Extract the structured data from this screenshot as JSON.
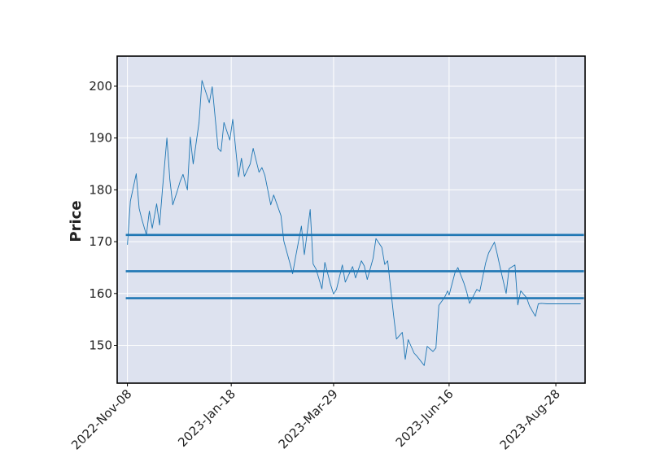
{
  "chart_data": {
    "type": "line",
    "title": "",
    "xlabel": "",
    "ylabel": "Price",
    "ylim": [
      142.7,
      205.8
    ],
    "x_range": [
      "2022-11-01",
      "2023-09-17"
    ],
    "grid": true,
    "legend": "none",
    "yticks": [
      150,
      160,
      170,
      180,
      190,
      200
    ],
    "xticks": [
      "2022-Nov-08",
      "2023-Jan-18",
      "2023-Mar-29",
      "2023-Jun-16",
      "2023-Aug-28"
    ],
    "xtick_dates": [
      "2022-11-08",
      "2023-01-18",
      "2023-03-29",
      "2023-06-16",
      "2023-08-28"
    ],
    "colors": {
      "background": "#dde2ef",
      "grid": "#ffffff",
      "line": "#1f77b4",
      "level_lines": "#1f77b4",
      "axes": "#000000"
    },
    "series": [
      {
        "dates": [
          "2022-11-08",
          "2022-11-10",
          "2022-11-14",
          "2022-11-16",
          "2022-11-18",
          "2022-11-21",
          "2022-11-23",
          "2022-11-25",
          "2022-11-28",
          "2022-11-30",
          "2022-12-02",
          "2022-12-05",
          "2022-12-07",
          "2022-12-09",
          "2022-12-12",
          "2022-12-14",
          "2022-12-16",
          "2022-12-19",
          "2022-12-21",
          "2022-12-23",
          "2022-12-27",
          "2022-12-29",
          "2023-01-03",
          "2023-01-05",
          "2023-01-09",
          "2023-01-11",
          "2023-01-13",
          "2023-01-17",
          "2023-01-19",
          "2023-01-23",
          "2023-01-25",
          "2023-01-27",
          "2023-01-31",
          "2023-02-02",
          "2023-02-06",
          "2023-02-08",
          "2023-02-10",
          "2023-02-14",
          "2023-02-16",
          "2023-02-21",
          "2023-02-23",
          "2023-02-27",
          "2023-03-01",
          "2023-03-03",
          "2023-03-07",
          "2023-03-09",
          "2023-03-13",
          "2023-03-15",
          "2023-03-17",
          "2023-03-21",
          "2023-03-23",
          "2023-03-27",
          "2023-03-29",
          "2023-03-31",
          "2023-04-04",
          "2023-04-06",
          "2023-04-11",
          "2023-04-13",
          "2023-04-17",
          "2023-04-19",
          "2023-04-21",
          "2023-04-25",
          "2023-04-27",
          "2023-05-01",
          "2023-05-03",
          "2023-05-05",
          "2023-05-09",
          "2023-05-11",
          "2023-05-15",
          "2023-05-17",
          "2023-05-19",
          "2023-05-23",
          "2023-05-25",
          "2023-05-30",
          "2023-06-01",
          "2023-06-05",
          "2023-06-07",
          "2023-06-09",
          "2023-06-13",
          "2023-06-15",
          "2023-06-16",
          "2023-06-20",
          "2023-06-22",
          "2023-06-26",
          "2023-06-28",
          "2023-06-30",
          "2023-07-05",
          "2023-07-07",
          "2023-07-11",
          "2023-07-13",
          "2023-07-17",
          "2023-07-19",
          "2023-07-21",
          "2023-07-25",
          "2023-07-27",
          "2023-07-31",
          "2023-08-02",
          "2023-08-04",
          "2023-08-08",
          "2023-08-10",
          "2023-08-14",
          "2023-08-16",
          "2023-08-18",
          "2023-08-22",
          "2023-08-24",
          "2023-08-28",
          "2023-08-30",
          "2023-09-01",
          "2023-09-06",
          "2023-09-08",
          "2023-09-12",
          "2023-09-14"
        ],
        "values": [
          169.4,
          177.8,
          183.1,
          176.4,
          174.2,
          171.3,
          175.9,
          172.6,
          177.3,
          173.2,
          180.2,
          190.0,
          182.0,
          177.1,
          179.7,
          181.6,
          183.0,
          180.0,
          190.2,
          185.0,
          193.0,
          201.1,
          196.8,
          199.9,
          188.0,
          187.4,
          193.0,
          189.6,
          193.6,
          182.5,
          186.1,
          182.6,
          185.0,
          188.0,
          183.4,
          184.3,
          182.8,
          177.1,
          179.0,
          175.0,
          170.1,
          166.0,
          163.8,
          167.0,
          173.0,
          167.5,
          176.2,
          165.7,
          164.7,
          160.9,
          166.0,
          161.7,
          159.9,
          160.8,
          165.5,
          162.2,
          165.2,
          163.0,
          166.3,
          165.3,
          162.7,
          166.8,
          170.6,
          168.9,
          165.6,
          166.3,
          155.9,
          151.2,
          152.5,
          147.3,
          151.1,
          148.5,
          147.9,
          146.1,
          149.8,
          148.8,
          149.5,
          157.7,
          159.3,
          160.5,
          159.7,
          164.0,
          165.0,
          162.1,
          160.3,
          158.1,
          160.8,
          160.4,
          165.9,
          167.8,
          169.9,
          167.5,
          164.9,
          160.0,
          164.8,
          165.5,
          157.8,
          160.5,
          159.2,
          157.6,
          155.6,
          158.0,
          158.1,
          158.0,
          158.0,
          158.0,
          158.0,
          158.0,
          158.0,
          158.0,
          158.0,
          158.0
        ]
      }
    ],
    "levels": [
      171.3,
      164.3,
      159.1
    ],
    "levels_x_range": [
      "2022-11-08",
      "2023-09-14"
    ]
  }
}
